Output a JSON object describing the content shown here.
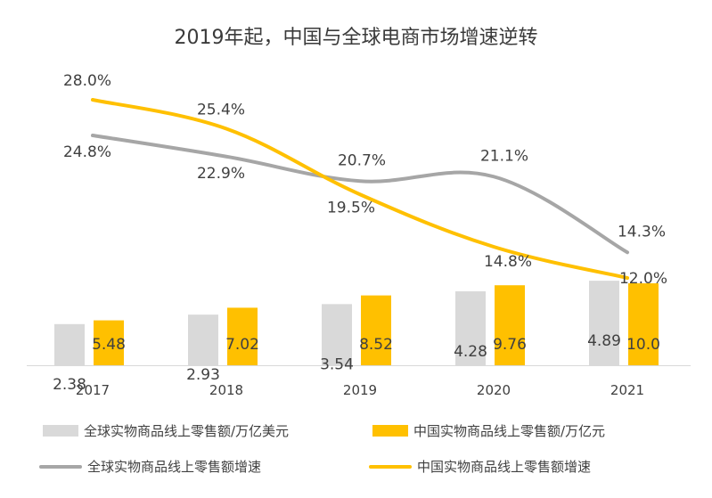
{
  "title": "2019年起，中国与全球电商市场增速逆转",
  "colors": {
    "global_bar": "#d9d9d9",
    "china_bar": "#ffc000",
    "global_line": "#a6a6a6",
    "china_line": "#ffc000",
    "axis": "#d9d9d9",
    "text": "#404040"
  },
  "chart_data": {
    "type": "bar",
    "categories": [
      "2017",
      "2018",
      "2019",
      "2020",
      "2021"
    ],
    "series": [
      {
        "name": "全球实物商品线上零售额/万亿美元",
        "kind": "bar",
        "axis": "left",
        "values": [
          2.38,
          2.93,
          3.54,
          4.28,
          4.89
        ],
        "labels": [
          "2.38",
          "2.93",
          "3.54",
          "4.28",
          "4.89"
        ]
      },
      {
        "name": "中国实物商品线上零售额/万亿元",
        "kind": "bar",
        "axis": "left",
        "values": [
          5.48,
          7.02,
          8.52,
          9.76,
          10.0
        ],
        "labels": [
          "5.48",
          "7.02",
          "8.52",
          "9.76",
          "10.0"
        ]
      },
      {
        "name": "全球实物商品线上零售额增速",
        "kind": "line",
        "axis": "right",
        "values": [
          24.8,
          22.9,
          20.7,
          21.1,
          14.3
        ],
        "labels": [
          "24.8%",
          "22.9%",
          "20.7%",
          "21.1%",
          "14.3%"
        ]
      },
      {
        "name": "中国实物商品线上零售额增速",
        "kind": "line",
        "axis": "right",
        "values": [
          28.0,
          25.4,
          19.5,
          14.8,
          12.0
        ],
        "labels": [
          "28.0%",
          "25.4%",
          "19.5%",
          "14.8%",
          "12.0%"
        ]
      }
    ],
    "legend_position": "bottom",
    "grid": false
  }
}
